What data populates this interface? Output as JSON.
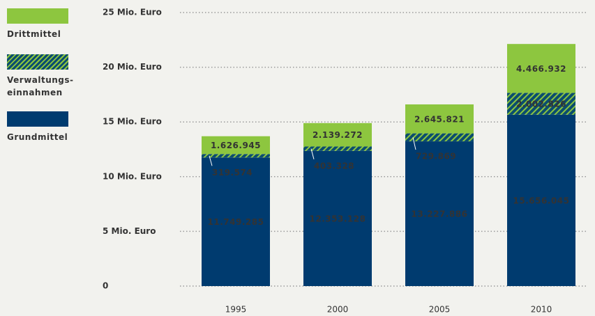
{
  "chart_data": {
    "type": "stacked-bar",
    "categories": [
      "1995",
      "2000",
      "2005",
      "2010"
    ],
    "series": [
      {
        "name": "Grundmittel",
        "color": "#003b6f",
        "values": [
          11749285,
          12353128,
          13227886,
          15656045
        ],
        "value_labels": [
          "11.749.285",
          "12.353.128",
          "13.227.886",
          "15.656.045"
        ]
      },
      {
        "name": "Verwaltungs-einnahmen",
        "color": "#0b4d6e",
        "hatch": "#8dc63f",
        "values": [
          319574,
          403328,
          729869,
          2002826
        ],
        "value_labels": [
          "319.574",
          "403.328",
          "729.869",
          "2.002.826"
        ]
      },
      {
        "name": "Drittmittel",
        "color": "#8dc63f",
        "values": [
          1626945,
          2139272,
          2645821,
          4466932
        ],
        "value_labels": [
          "1.626.945",
          "2.139.272",
          "2.645.821",
          "4.466.932"
        ]
      }
    ],
    "ylim": [
      0,
      25000000
    ],
    "yticks": [
      {
        "value": 0,
        "label": "0"
      },
      {
        "value": 5000000,
        "label": "5 Mio. Euro"
      },
      {
        "value": 10000000,
        "label": "10 Mio. Euro"
      },
      {
        "value": 15000000,
        "label": "15 Mio. Euro"
      },
      {
        "value": 20000000,
        "label": "20 Mio. Euro"
      },
      {
        "value": 25000000,
        "label": "25 Mio. Euro"
      }
    ],
    "grid": true
  }
}
